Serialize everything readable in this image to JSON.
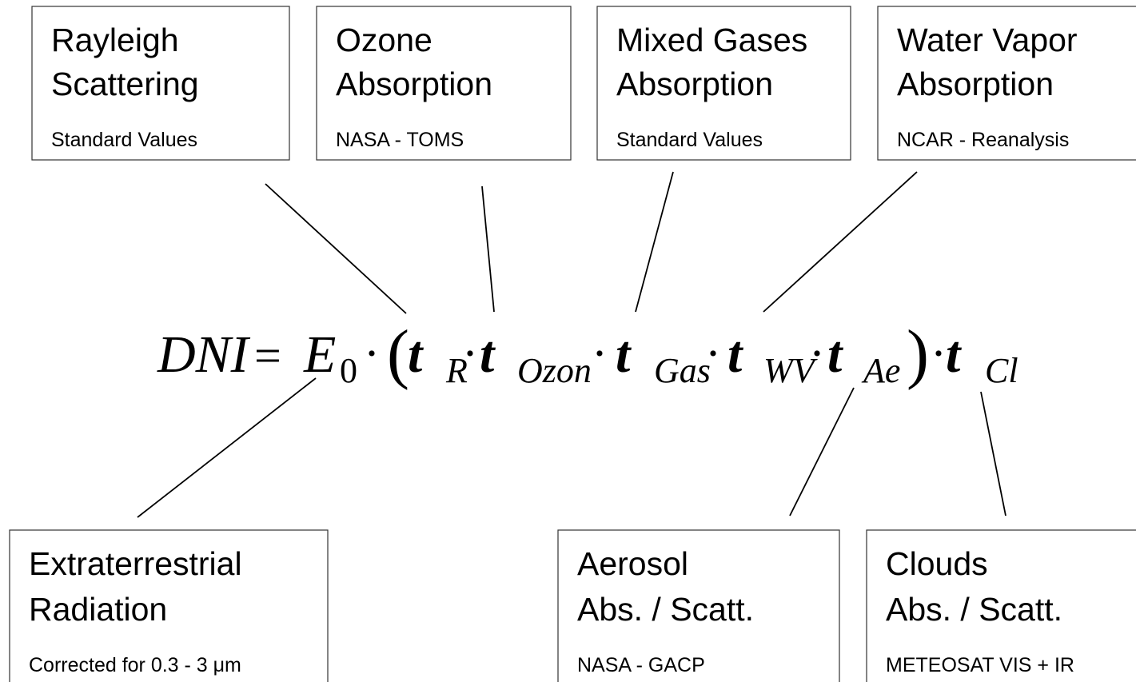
{
  "boxes": [
    {
      "title": [
        "Rayleigh",
        "Scattering"
      ],
      "source": "Standard Values"
    },
    {
      "title": [
        "Ozone",
        "Absorption"
      ],
      "source": "NASA - TOMS"
    },
    {
      "title": [
        "Mixed Gases",
        "Absorption"
      ],
      "source": "Standard Values"
    },
    {
      "title": [
        "Water Vapor",
        "Absorption"
      ],
      "source": "NCAR - Reanalysis"
    },
    {
      "title": [
        "Extraterrestrial",
        "Radiation"
      ],
      "source": "Corrected for 0.3 - 3 μm"
    },
    {
      "title": [
        "Aerosol",
        "Abs. / Scatt."
      ],
      "source": "NASA - GACP"
    },
    {
      "title": [
        "Clouds",
        "Abs. / Scatt."
      ],
      "source": "METEOSAT VIS + IR"
    }
  ],
  "equation": {
    "lhs": "DNI",
    "equals": "=",
    "e": "E",
    "e_sub": "0",
    "dot": "·",
    "open": "(",
    "close": ")",
    "factors": [
      {
        "symbol": "t",
        "sub": "R"
      },
      {
        "symbol": "t",
        "sub": "Ozon"
      },
      {
        "symbol": "t",
        "sub": "Gas"
      },
      {
        "symbol": "t",
        "sub": "WV"
      },
      {
        "symbol": "t",
        "sub": "Ae"
      }
    ],
    "cloud": {
      "symbol": "t",
      "sub": "Cl"
    }
  }
}
